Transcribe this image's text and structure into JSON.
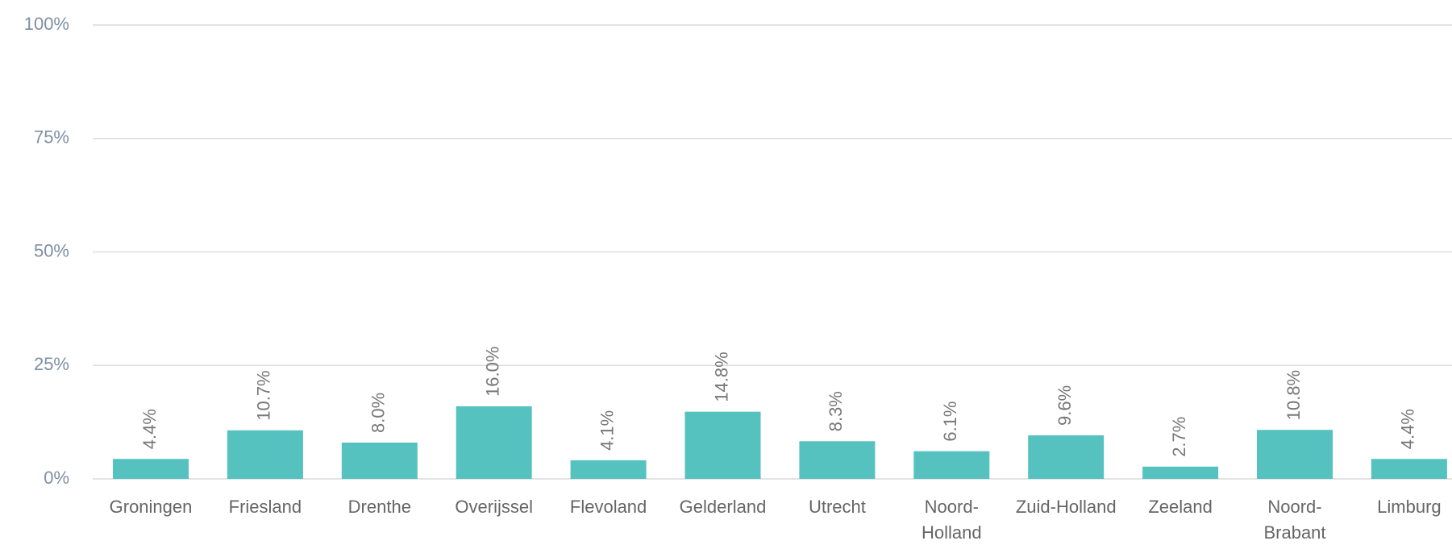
{
  "chart_data": {
    "type": "bar",
    "categories": [
      "Groningen",
      "Friesland",
      "Drenthe",
      "Overijssel",
      "Flevoland",
      "Gelderland",
      "Utrecht",
      "Noord-Holland",
      "Zuid-Holland",
      "Zeeland",
      "Noord-Brabant",
      "Limburg"
    ],
    "values": [
      4.4,
      10.7,
      8.0,
      16.0,
      4.1,
      14.8,
      8.3,
      6.1,
      9.6,
      2.7,
      10.8,
      4.4
    ],
    "value_labels": [
      "4.4%",
      "10.7%",
      "8.0%",
      "16.0%",
      "4.1%",
      "14.8%",
      "8.3%",
      "6.1%",
      "9.6%",
      "2.7%",
      "10.8%",
      "4.4%"
    ],
    "color": "#56c2bf",
    "ylim": [
      0,
      100
    ],
    "yticks": [
      {
        "value": 0,
        "label": "0%"
      },
      {
        "value": 25,
        "label": "25%"
      },
      {
        "value": 50,
        "label": "50%"
      },
      {
        "value": 75,
        "label": "75%"
      },
      {
        "value": 100,
        "label": "100%"
      }
    ],
    "grid": true
  }
}
